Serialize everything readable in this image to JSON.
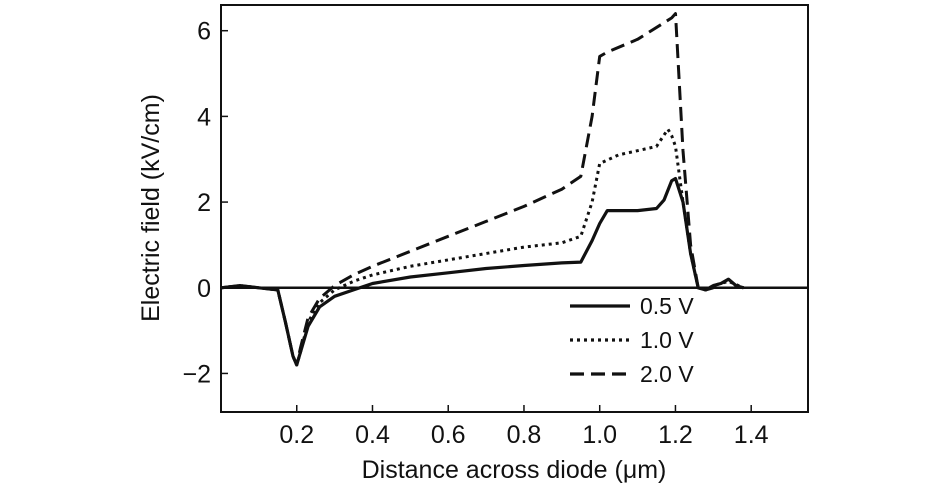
{
  "chart_data": {
    "type": "line",
    "xlabel": "Distance across diode (μm)",
    "ylabel": "Electric field (kV/cm)",
    "xlim": [
      0.0,
      1.55
    ],
    "ylim": [
      -2.9,
      6.6
    ],
    "x_ticks": [
      0.2,
      0.4,
      0.6,
      0.8,
      1.0,
      1.2,
      1.4
    ],
    "x_tick_labels": [
      "0.2",
      "0.4",
      "0.6",
      "0.8",
      "1.0",
      "1.2",
      "1.4"
    ],
    "y_ticks": [
      -2,
      0,
      2,
      4,
      6
    ],
    "y_tick_labels": [
      "−2",
      "0",
      "2",
      "4",
      "6"
    ],
    "zero_line": true,
    "grid": false,
    "legend_position": "bottom-right",
    "series": [
      {
        "name": "0.5 V",
        "style": "solid",
        "color": "#111111",
        "x": [
          0.0,
          0.05,
          0.1,
          0.15,
          0.17,
          0.19,
          0.2,
          0.21,
          0.23,
          0.26,
          0.3,
          0.35,
          0.4,
          0.5,
          0.6,
          0.7,
          0.8,
          0.9,
          0.95,
          0.98,
          1.0,
          1.02,
          1.1,
          1.15,
          1.17,
          1.19,
          1.2,
          1.22,
          1.24,
          1.26,
          1.28,
          1.3,
          1.32,
          1.34,
          1.36,
          1.38
        ],
        "y": [
          0.0,
          0.05,
          0.0,
          -0.05,
          -0.8,
          -1.6,
          -1.8,
          -1.5,
          -0.9,
          -0.45,
          -0.2,
          -0.05,
          0.1,
          0.25,
          0.35,
          0.45,
          0.52,
          0.58,
          0.6,
          1.1,
          1.5,
          1.8,
          1.8,
          1.85,
          2.05,
          2.5,
          2.55,
          2.0,
          0.8,
          0.0,
          -0.05,
          0.05,
          0.1,
          0.2,
          0.05,
          0.0
        ]
      },
      {
        "name": "1.0 V",
        "style": "dotted",
        "color": "#111111",
        "x": [
          0.0,
          0.05,
          0.1,
          0.15,
          0.17,
          0.19,
          0.2,
          0.21,
          0.23,
          0.26,
          0.3,
          0.35,
          0.4,
          0.5,
          0.6,
          0.7,
          0.8,
          0.9,
          0.95,
          0.98,
          1.0,
          1.05,
          1.1,
          1.15,
          1.18,
          1.19,
          1.2,
          1.22,
          1.24,
          1.26,
          1.28,
          1.3,
          1.34,
          1.38
        ],
        "y": [
          0.0,
          0.05,
          0.0,
          -0.05,
          -0.8,
          -1.6,
          -1.8,
          -1.5,
          -0.8,
          -0.35,
          -0.05,
          0.15,
          0.3,
          0.5,
          0.65,
          0.8,
          0.95,
          1.05,
          1.2,
          2.0,
          2.9,
          3.1,
          3.2,
          3.3,
          3.7,
          3.55,
          3.3,
          2.0,
          0.8,
          0.0,
          -0.05,
          0.05,
          0.15,
          0.0
        ]
      },
      {
        "name": "2.0 V",
        "style": "dashed",
        "color": "#111111",
        "x": [
          0.0,
          0.05,
          0.1,
          0.15,
          0.17,
          0.19,
          0.2,
          0.21,
          0.23,
          0.26,
          0.3,
          0.35,
          0.4,
          0.5,
          0.6,
          0.7,
          0.8,
          0.9,
          0.95,
          0.98,
          1.0,
          1.02,
          1.1,
          1.19,
          1.2,
          1.22,
          1.24,
          1.26,
          1.28,
          1.3
        ],
        "y": [
          0.0,
          0.05,
          0.0,
          -0.05,
          -0.8,
          -1.6,
          -1.8,
          -1.4,
          -0.7,
          -0.25,
          0.05,
          0.3,
          0.5,
          0.85,
          1.2,
          1.55,
          1.9,
          2.3,
          2.6,
          4.0,
          5.4,
          5.5,
          5.8,
          6.3,
          6.4,
          3.2,
          1.0,
          0.0,
          -0.05,
          0.0
        ]
      }
    ]
  }
}
